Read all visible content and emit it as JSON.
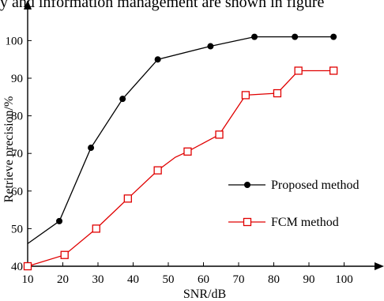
{
  "caption": "y and information management are shown in figure",
  "chart_data": {
    "type": "line",
    "title": "",
    "xlabel": "SNR/dB",
    "ylabel": "Retrieve precision/%",
    "xlim": [
      10,
      100
    ],
    "ylim": [
      40,
      110
    ],
    "x_ticks": [
      10,
      20,
      30,
      40,
      50,
      60,
      70,
      80,
      90,
      100
    ],
    "y_ticks": [
      40,
      50,
      60,
      70,
      80,
      90,
      100
    ],
    "grid": false,
    "legend_position": "center-right",
    "series": [
      {
        "name": "Proposed method",
        "color": "#000000",
        "marker": "filled-circle",
        "points": [
          [
            10,
            46
          ],
          [
            19,
            52
          ],
          [
            28,
            71.5
          ],
          [
            37,
            84.5
          ],
          [
            47,
            95
          ],
          [
            62,
            98.5
          ],
          [
            74.5,
            101
          ],
          [
            86,
            101
          ],
          [
            97,
            101
          ]
        ],
        "marker_x": [
          19,
          28,
          37,
          47,
          62,
          74.5,
          86,
          97
        ]
      },
      {
        "name": "FCM method",
        "color": "#e00000",
        "marker": "hollow-square",
        "points": [
          [
            10,
            40
          ],
          [
            20.5,
            43
          ],
          [
            29.5,
            50
          ],
          [
            38.5,
            58
          ],
          [
            47,
            65.5
          ],
          [
            52,
            69
          ],
          [
            55.5,
            70.5
          ],
          [
            64.5,
            75
          ],
          [
            72,
            85.5
          ],
          [
            81,
            86
          ],
          [
            87,
            92
          ],
          [
            97,
            92
          ]
        ],
        "marker_x": [
          10,
          20.5,
          29.5,
          38.5,
          47,
          55.5,
          64.5,
          72,
          81,
          87,
          97
        ]
      }
    ]
  }
}
